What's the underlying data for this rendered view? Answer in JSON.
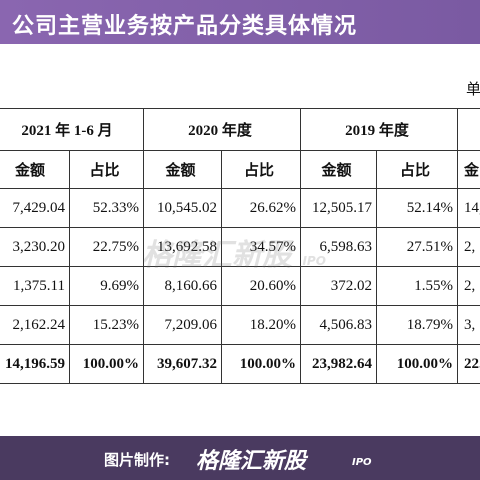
{
  "header": {
    "title": "公司主营业务按产品分类具体情况"
  },
  "unit": "单",
  "table": {
    "groups": [
      "2021 年 1-6 月",
      "2020 年度",
      "2019 年度"
    ],
    "subheaders": [
      "金额",
      "占比",
      "金额",
      "占比",
      "金额",
      "占比",
      "金"
    ],
    "rows": [
      [
        "7,429.04",
        "52.33%",
        "10,545.02",
        "26.62%",
        "12,505.17",
        "52.14%",
        "14,"
      ],
      [
        "3,230.20",
        "22.75%",
        "13,692.58",
        "34.57%",
        "6,598.63",
        "27.51%",
        "2,"
      ],
      [
        "1,375.11",
        "9.69%",
        "8,160.66",
        "20.60%",
        "372.02",
        "1.55%",
        "2,"
      ],
      [
        "2,162.24",
        "15.23%",
        "7,209.06",
        "18.20%",
        "4,506.83",
        "18.79%",
        "3,"
      ],
      [
        "14,196.59",
        "100.00%",
        "39,607.32",
        "100.00%",
        "23,982.64",
        "100.00%",
        "22."
      ]
    ]
  },
  "watermark": {
    "brand": "格隆汇新股",
    "suffix": "IPO"
  },
  "footer": {
    "label": "图片制作:",
    "brand": "格隆汇新股",
    "suffix": "IPO"
  }
}
